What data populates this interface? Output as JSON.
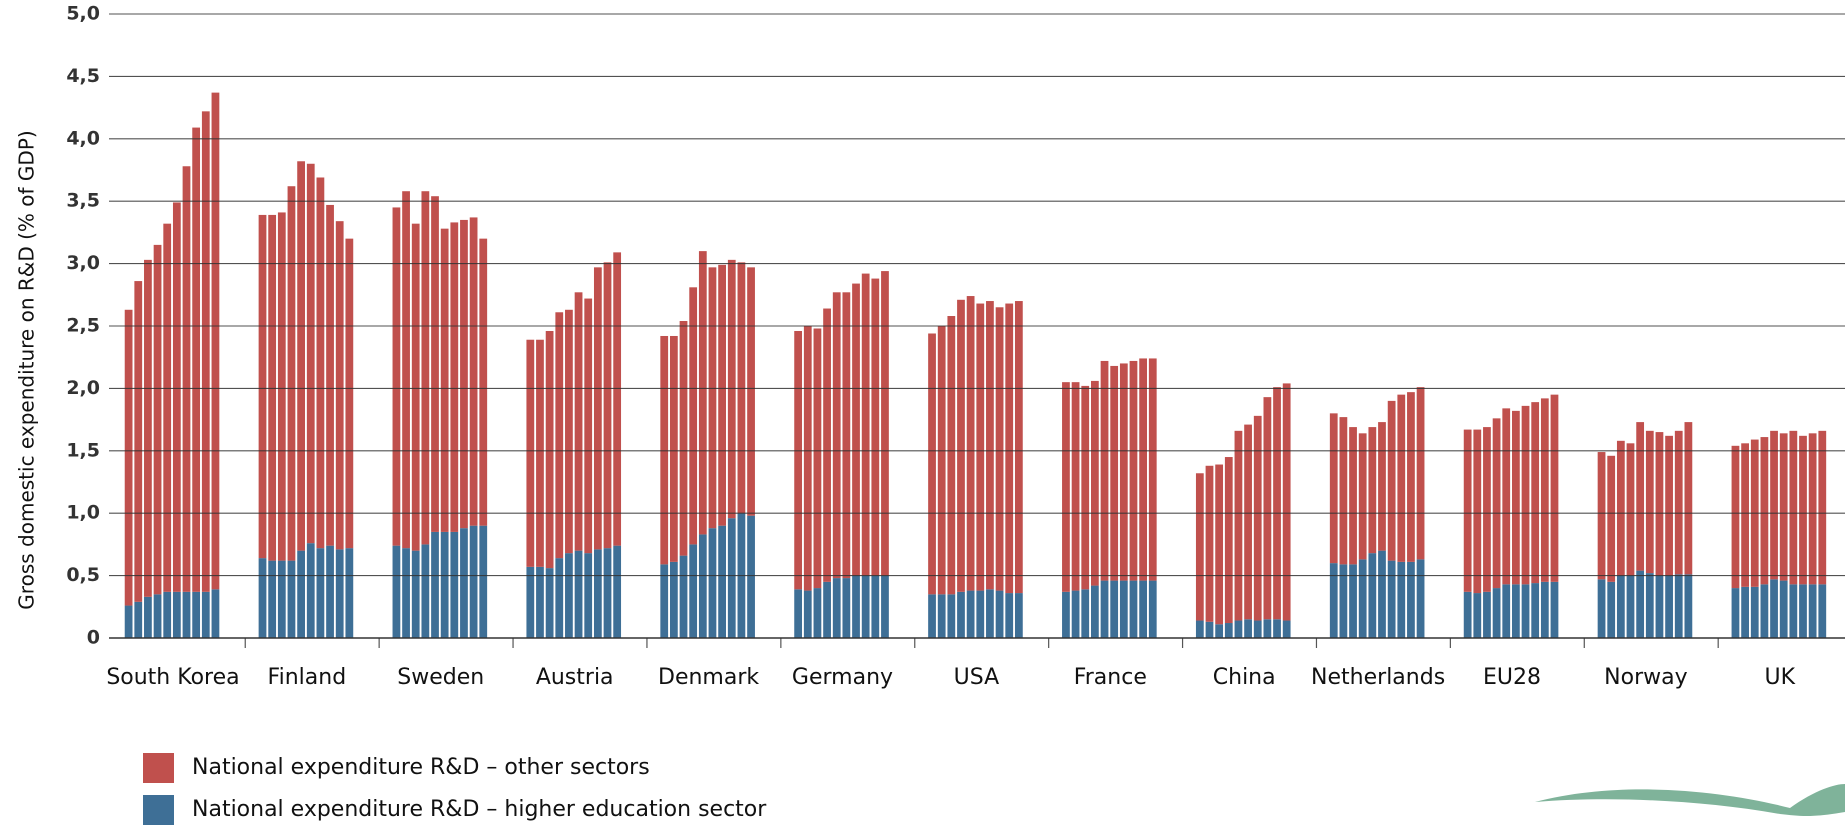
{
  "chart_data": {
    "type": "grouped-stacked-bar",
    "y_label": "Gross domestic expenditure on R&D (% of GDP)",
    "categories": [
      "South Korea",
      "Finland",
      "Sweden",
      "Austria",
      "Denmark",
      "Germany",
      "USA",
      "France",
      "China",
      "Netherlands",
      "EU28",
      "Norway",
      "UK"
    ],
    "series": [
      {
        "name": "National expenditure R&D – higher education sector",
        "color": "#3e6f96",
        "values": [
          [
            0.26,
            0.29,
            0.33,
            0.35,
            0.37,
            0.37,
            0.37,
            0.37,
            0.37,
            0.39
          ],
          [
            0.64,
            0.62,
            0.62,
            0.62,
            0.7,
            0.76,
            0.72,
            0.74,
            0.71,
            0.72
          ],
          [
            0.74,
            0.72,
            0.7,
            0.75,
            0.85,
            0.85,
            0.85,
            0.88,
            0.9,
            0.9
          ],
          [
            0.57,
            0.57,
            0.56,
            0.64,
            0.68,
            0.7,
            0.68,
            0.71,
            0.72,
            0.74
          ],
          [
            0.59,
            0.61,
            0.66,
            0.75,
            0.83,
            0.88,
            0.9,
            0.96,
            1.0,
            0.98
          ],
          [
            0.39,
            0.38,
            0.4,
            0.45,
            0.48,
            0.48,
            0.5,
            0.5,
            0.5,
            0.5
          ],
          [
            0.35,
            0.35,
            0.35,
            0.37,
            0.38,
            0.38,
            0.39,
            0.38,
            0.36,
            0.36
          ],
          [
            0.37,
            0.38,
            0.39,
            0.42,
            0.46,
            0.46,
            0.46,
            0.46,
            0.46,
            0.46
          ],
          [
            0.14,
            0.13,
            0.11,
            0.12,
            0.14,
            0.15,
            0.14,
            0.15,
            0.15,
            0.14
          ],
          [
            0.6,
            0.59,
            0.59,
            0.63,
            0.68,
            0.7,
            0.62,
            0.61,
            0.61,
            0.63
          ],
          [
            0.37,
            0.36,
            0.37,
            0.4,
            0.43,
            0.43,
            0.43,
            0.44,
            0.45,
            0.45
          ],
          [
            0.47,
            0.45,
            0.5,
            0.5,
            0.54,
            0.52,
            0.5,
            0.5,
            0.51,
            0.51
          ],
          [
            0.4,
            0.41,
            0.41,
            0.43,
            0.47,
            0.46,
            0.43,
            0.43,
            0.43,
            0.43
          ]
        ]
      },
      {
        "name": "National expenditure R&D – other sectors",
        "color": "#c0504d",
        "values": [
          [
            2.37,
            2.57,
            2.7,
            2.8,
            2.95,
            3.12,
            3.41,
            3.72,
            3.85,
            3.98
          ],
          [
            2.75,
            2.77,
            2.79,
            3.0,
            3.12,
            3.04,
            2.97,
            2.73,
            2.63,
            2.48
          ],
          [
            2.71,
            2.86,
            2.62,
            2.83,
            2.69,
            2.43,
            2.48,
            2.47,
            2.47,
            2.3
          ],
          [
            1.82,
            1.82,
            1.9,
            1.97,
            1.95,
            2.07,
            2.04,
            2.26,
            2.29,
            2.35
          ],
          [
            1.83,
            1.81,
            1.88,
            2.06,
            2.27,
            2.09,
            2.09,
            2.07,
            2.01,
            1.99
          ],
          [
            2.07,
            2.12,
            2.08,
            2.19,
            2.29,
            2.29,
            2.34,
            2.42,
            2.38,
            2.44
          ],
          [
            2.09,
            2.15,
            2.23,
            2.34,
            2.36,
            2.3,
            2.31,
            2.27,
            2.32,
            2.34
          ],
          [
            1.68,
            1.67,
            1.63,
            1.64,
            1.76,
            1.72,
            1.74,
            1.76,
            1.78,
            1.78
          ],
          [
            1.18,
            1.25,
            1.28,
            1.33,
            1.52,
            1.56,
            1.64,
            1.78,
            1.86,
            1.9
          ],
          [
            1.2,
            1.18,
            1.1,
            1.01,
            1.01,
            1.03,
            1.28,
            1.34,
            1.36,
            1.38
          ],
          [
            1.3,
            1.31,
            1.32,
            1.36,
            1.41,
            1.39,
            1.43,
            1.45,
            1.47,
            1.5
          ],
          [
            1.02,
            1.01,
            1.08,
            1.06,
            1.19,
            1.14,
            1.15,
            1.12,
            1.15,
            1.22
          ],
          [
            1.14,
            1.15,
            1.18,
            1.18,
            1.19,
            1.18,
            1.23,
            1.19,
            1.21,
            1.23
          ]
        ]
      }
    ],
    "legend_order": [
      1,
      0
    ],
    "ylim": [
      0,
      5
    ],
    "yticks": [
      0,
      {
        "value": 0.5,
        "label": "0,5"
      },
      {
        "value": 1,
        "label": "1,0"
      },
      {
        "value": 1.5,
        "label": "1,5"
      },
      {
        "value": 2,
        "label": "2,0"
      },
      {
        "value": 2.5,
        "label": "2,5"
      },
      {
        "value": 3,
        "label": "3,0"
      },
      {
        "value": 3.5,
        "label": "3,5"
      },
      {
        "value": 4,
        "label": "4,0"
      },
      {
        "value": 4.5,
        "label": "4,5"
      },
      {
        "value": 5,
        "label": "5,0"
      }
    ],
    "grid": true
  }
}
